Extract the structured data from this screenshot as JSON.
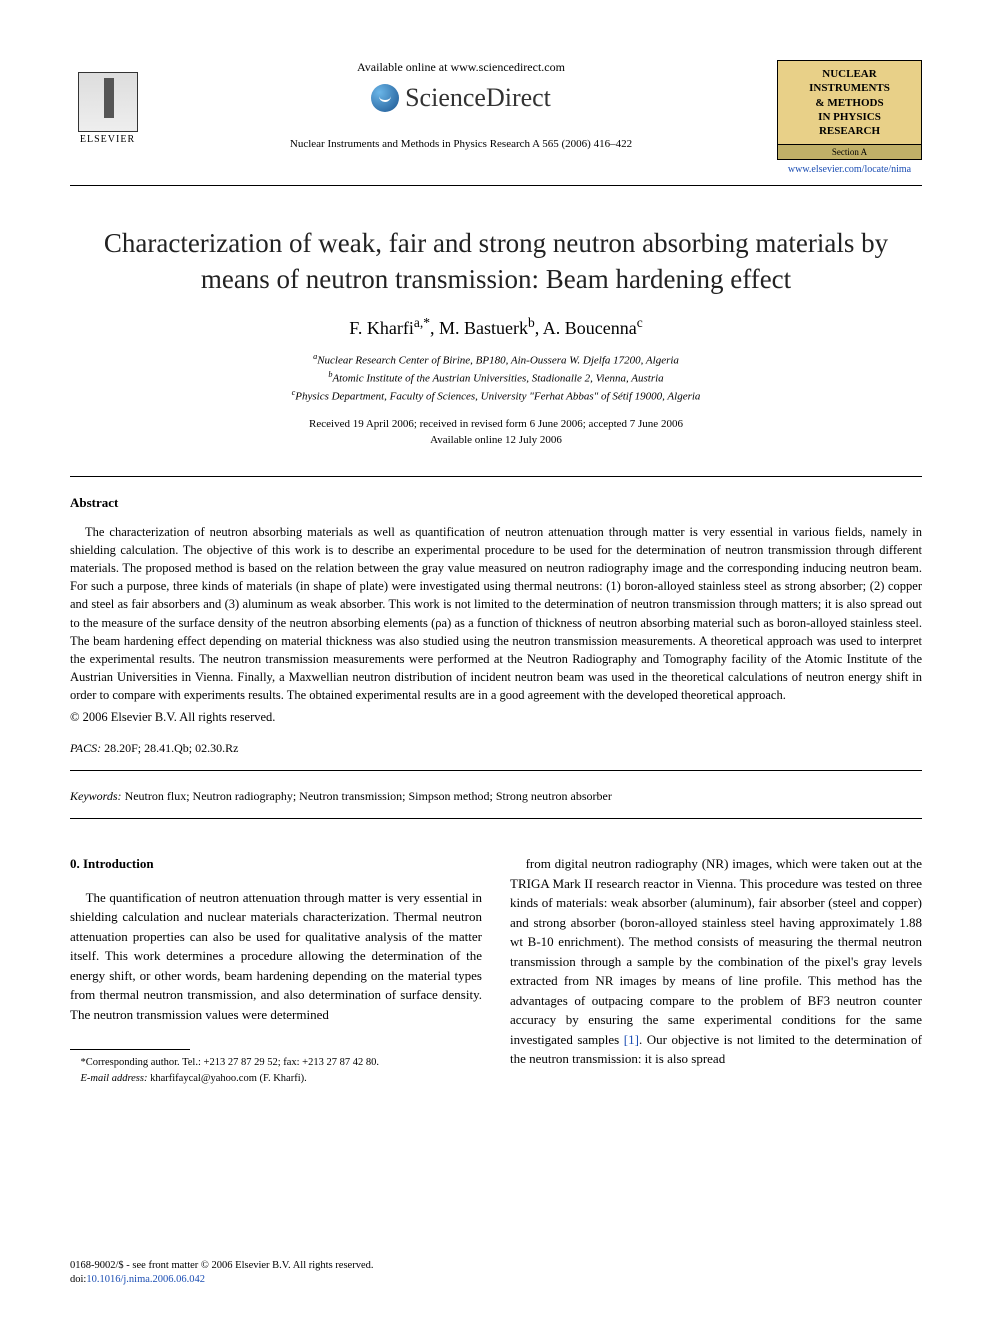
{
  "header": {
    "available_online": "Available online at www.sciencedirect.com",
    "sd_brand": "ScienceDirect",
    "citation": "Nuclear Instruments and Methods in Physics Research A 565 (2006) 416–422",
    "elsevier_label": "ELSEVIER",
    "journal_box_line1": "NUCLEAR",
    "journal_box_line2": "INSTRUMENTS",
    "journal_box_line3": "& METHODS",
    "journal_box_line4": "IN PHYSICS",
    "journal_box_line5": "RESEARCH",
    "section_a": "Section A",
    "journal_link": "www.elsevier.com/locate/nima"
  },
  "title": "Characterization of weak, fair and strong neutron absorbing materials by means of neutron transmission: Beam hardening effect",
  "authors_html": "F. Kharfi",
  "author_a_sup": "a,*",
  "author_b": "M. Bastuerk",
  "author_b_sup": "b",
  "author_c": "A. Boucenna",
  "author_c_sup": "c",
  "affiliations": {
    "a": "Nuclear Research Center of Birine, BP180, Ain-Oussera W. Djelfa 17200, Algeria",
    "b": "Atomic Institute of the Austrian Universities, Stadionalle 2, Vienna, Austria",
    "c": "Physics Department, Faculty of Sciences, University \"Ferhat Abbas\" of Sétif 19000, Algeria"
  },
  "dates": {
    "received": "Received 19 April 2006; received in revised form 6 June 2006; accepted 7 June 2006",
    "online": "Available online 12 July 2006"
  },
  "abstract": {
    "heading": "Abstract",
    "body": "The characterization of neutron absorbing materials as well as quantification of neutron attenuation through matter is very essential in various fields, namely in shielding calculation. The objective of this work is to describe an experimental procedure to be used for the determination of neutron transmission through different materials. The proposed method is based on the relation between the gray value measured on neutron radiography image and the corresponding inducing neutron beam. For such a purpose, three kinds of materials (in shape of plate) were investigated using thermal neutrons: (1) boron-alloyed stainless steel as strong absorber; (2) copper and steel as fair absorbers and (3) aluminum as weak absorber. This work is not limited to the determination of neutron transmission through matters; it is also spread out to the measure of the surface density of the neutron absorbing elements (ρa) as a function of thickness of neutron absorbing material such as boron-alloyed stainless steel. The beam hardening effect depending on material thickness was also studied using the neutron transmission measurements. A theoretical approach was used to interpret the experimental results. The neutron transmission measurements were performed at the Neutron Radiography and Tomography facility of the Atomic Institute of the Austrian Universities in Vienna. Finally, a Maxwellian neutron distribution of incident neutron beam was used in the theoretical calculations of neutron energy shift in order to compare with experiments results. The obtained experimental results are in a good agreement with the developed theoretical approach.",
    "copyright": "© 2006 Elsevier B.V. All rights reserved."
  },
  "pacs_label": "PACS:",
  "pacs_codes": "28.20F; 28.41.Qb; 02.30.Rz",
  "keywords_label": "Keywords:",
  "keywords": "Neutron flux; Neutron radiography; Neutron transmission; Simpson method; Strong neutron absorber",
  "body": {
    "section0_heading": "0.  Introduction",
    "col1_p1": "The quantification of neutron attenuation through matter is very essential in shielding calculation and nuclear materials characterization. Thermal neutron attenuation properties can also be used for qualitative analysis of the matter itself. This work determines a procedure allowing the determination of the energy shift, or other words, beam hardening depending on the material types from thermal neutron transmission, and also determination of surface density. The neutron transmission values were determined",
    "col2_p1": "from digital neutron radiography (NR) images, which were taken out at the TRIGA Mark II research reactor in Vienna. This procedure was tested on three kinds of materials: weak absorber (aluminum), fair absorber (steel and copper) and strong absorber (boron-alloyed stainless steel having approximately 1.88 wt B-10 enrichment). The method consists of measuring the thermal neutron transmission through a sample by the combination of the pixel's gray levels extracted from NR images by means of line profile. This method has the advantages of outpacing compare to the problem of BF3 neutron counter accuracy by ensuring the same experimental conditions for the same investigated samples ",
    "ref1": "[1]",
    "col2_p1_tail": ". Our objective is not limited to the determination of the neutron transmission: it is also spread"
  },
  "footnote": {
    "corresponding": "*Corresponding author. Tel.: +213 27 87 29 52; fax: +213 27 87 42 80.",
    "email_label": "E-mail address:",
    "email": "kharfifaycal@yahoo.com (F. Kharfi)."
  },
  "footer": {
    "line1": "0168-9002/$ - see front matter © 2006 Elsevier B.V. All rights reserved.",
    "doi_prefix": "doi:",
    "doi": "10.1016/j.nima.2006.06.042"
  }
}
